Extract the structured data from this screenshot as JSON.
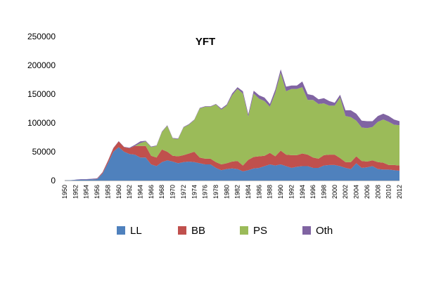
{
  "chart_data": {
    "type": "area",
    "stacked": true,
    "title": "YFT",
    "xlabel": "",
    "ylabel": "",
    "ylim": [
      0,
      250000
    ],
    "yticks": [
      "0",
      "50000",
      "100000",
      "150000",
      "200000",
      "250000"
    ],
    "xtick_labels": [
      "1950",
      "1952",
      "1954",
      "1956",
      "1958",
      "1960",
      "1962",
      "1964",
      "1966",
      "1968",
      "1970",
      "1972",
      "1974",
      "1976",
      "1978",
      "1980",
      "1982",
      "1984",
      "1986",
      "1988",
      "1990",
      "1992",
      "1994",
      "1996",
      "1998",
      "2000",
      "2002",
      "2004",
      "2006",
      "2008",
      "2010",
      "2012"
    ],
    "legend_position": "bottom",
    "x": [
      1950,
      1951,
      1952,
      1953,
      1954,
      1955,
      1956,
      1957,
      1958,
      1959,
      1960,
      1961,
      1962,
      1963,
      1964,
      1965,
      1966,
      1967,
      1968,
      1969,
      1970,
      1971,
      1972,
      1973,
      1974,
      1975,
      1976,
      1977,
      1978,
      1979,
      1980,
      1981,
      1982,
      1983,
      1984,
      1985,
      1986,
      1987,
      1988,
      1989,
      1990,
      1991,
      1992,
      1993,
      1994,
      1995,
      1996,
      1997,
      1998,
      1999,
      2000,
      2001,
      2002,
      2003,
      2004,
      2005,
      2006,
      2007,
      2008,
      2009,
      2010,
      2011,
      2012
    ],
    "series": [
      {
        "name": "LL",
        "color": "#4f81bd",
        "values": [
          0,
          500,
          1000,
          1500,
          1500,
          2000,
          2500,
          12000,
          30000,
          50000,
          58000,
          50000,
          46000,
          45000,
          40000,
          40000,
          28000,
          25000,
          32000,
          35000,
          33000,
          30000,
          32000,
          33000,
          32000,
          30000,
          28000,
          28000,
          22000,
          18000,
          20000,
          21000,
          20000,
          16000,
          18000,
          21000,
          22000,
          25000,
          28000,
          26000,
          28000,
          25000,
          22000,
          24000,
          25000,
          25000,
          22000,
          22000,
          26000,
          27000,
          27000,
          25000,
          22000,
          20000,
          30000,
          22000,
          23000,
          25000,
          20000,
          19000,
          19000,
          18000,
          17000
        ]
      },
      {
        "name": "BB",
        "color": "#c0504d",
        "values": [
          0,
          0,
          0,
          0,
          0,
          0,
          500,
          2000,
          4000,
          6000,
          10000,
          8000,
          10000,
          15000,
          20000,
          20000,
          15000,
          15000,
          22000,
          15000,
          10000,
          12000,
          12000,
          14000,
          18000,
          10000,
          10000,
          10000,
          10000,
          10000,
          10000,
          12000,
          14000,
          10000,
          18000,
          20000,
          20000,
          18000,
          20000,
          16000,
          24000,
          20000,
          22000,
          20000,
          22000,
          20000,
          18000,
          16000,
          18000,
          18000,
          18000,
          14000,
          10000,
          12000,
          12000,
          12000,
          10000,
          10000,
          12000,
          12000,
          8000,
          9000,
          9000
        ]
      },
      {
        "name": "PS",
        "color": "#9bbb59",
        "values": [
          0,
          0,
          0,
          0,
          0,
          0,
          0,
          0,
          0,
          0,
          0,
          0,
          0,
          0,
          5000,
          8000,
          15000,
          20000,
          30000,
          45000,
          30000,
          30000,
          48000,
          50000,
          55000,
          85000,
          90000,
          90000,
          100000,
          95000,
          100000,
          115000,
          125000,
          125000,
          75000,
          110000,
          100000,
          95000,
          80000,
          110000,
          135000,
          110000,
          115000,
          115000,
          115000,
          95000,
          100000,
          95000,
          90000,
          85000,
          85000,
          105000,
          80000,
          78000,
          62000,
          58000,
          58000,
          58000,
          70000,
          75000,
          75000,
          70000,
          70000
        ]
      },
      {
        "name": "Oth",
        "color": "#8064a2",
        "values": [
          0,
          0,
          500,
          1000,
          1000,
          1000,
          1000,
          500,
          500,
          500,
          500,
          500,
          1000,
          2000,
          3000,
          1000,
          1000,
          1000,
          1000,
          1000,
          1000,
          1000,
          1000,
          1000,
          1000,
          1000,
          1000,
          1000,
          1000,
          2000,
          2000,
          3000,
          3000,
          4000,
          4000,
          5000,
          6000,
          6000,
          5000,
          6000,
          6000,
          8000,
          6000,
          6000,
          10000,
          10000,
          8000,
          8000,
          9000,
          8000,
          5000,
          5000,
          10000,
          12000,
          12000,
          12000,
          12000,
          10000,
          10000,
          10000,
          10000,
          9000,
          7000
        ]
      }
    ]
  }
}
